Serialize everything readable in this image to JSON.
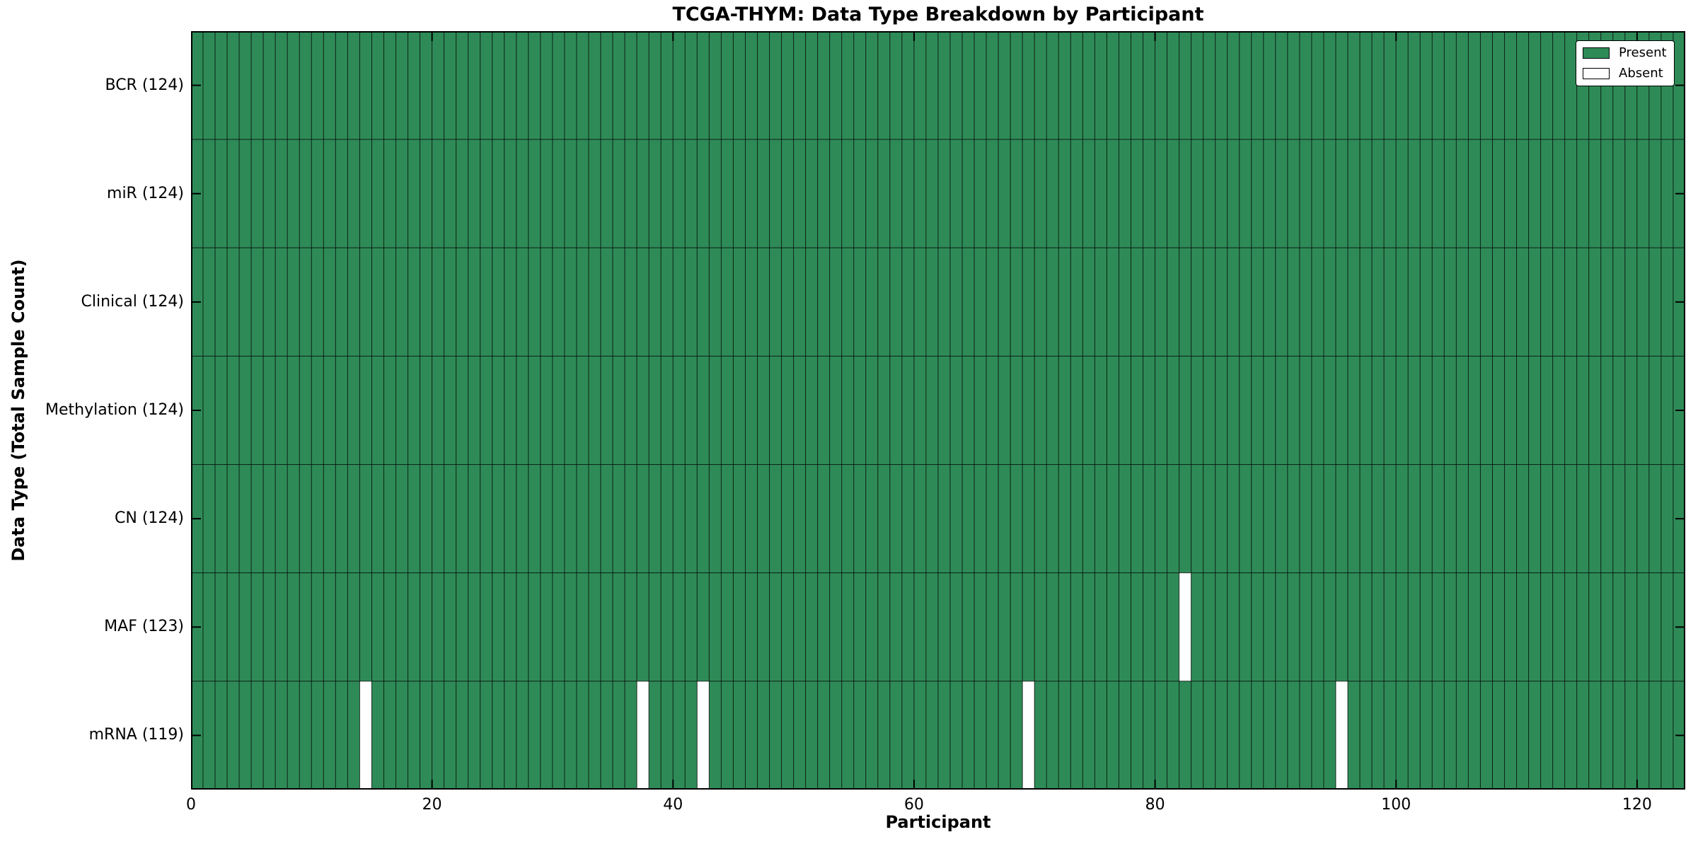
{
  "title": "TCGA-THYM: Data Type Breakdown by Participant",
  "colors": {
    "present": "#2e8b57",
    "absent": "#ffffff",
    "cell_edge": "rgba(0,0,0,0.62)",
    "frame": "#000000",
    "text": "#000000"
  },
  "legend": {
    "present_label": "Present",
    "absent_label": "Absent",
    "position": "upper right"
  },
  "chart_data": {
    "type": "heatmap",
    "title": "TCGA-THYM: Data Type Breakdown by Participant",
    "xlabel": "Participant",
    "ylabel": "Data Type (Total Sample Count)",
    "xlim": [
      0,
      124
    ],
    "n_participants": 124,
    "x_ticks": [
      0,
      20,
      40,
      60,
      80,
      100,
      120
    ],
    "grid": false,
    "legend_entries": [
      "Present",
      "Absent"
    ],
    "legend_position": "upper right",
    "rows": [
      {
        "label": "BCR (124)",
        "data_type": "BCR",
        "present_count": 124,
        "absent_participants": []
      },
      {
        "label": "miR (124)",
        "data_type": "miR",
        "present_count": 124,
        "absent_participants": []
      },
      {
        "label": "Clinical (124)",
        "data_type": "Clinical",
        "present_count": 124,
        "absent_participants": []
      },
      {
        "label": "Methylation (124)",
        "data_type": "Methylation",
        "present_count": 124,
        "absent_participants": []
      },
      {
        "label": "CN (124)",
        "data_type": "CN",
        "present_count": 124,
        "absent_participants": []
      },
      {
        "label": "MAF (123)",
        "data_type": "MAF",
        "present_count": 123,
        "absent_participants": [
          82
        ]
      },
      {
        "label": "mRNA (119)",
        "data_type": "mRNA",
        "present_count": 119,
        "absent_participants": [
          14,
          37,
          42,
          69,
          95
        ]
      }
    ]
  }
}
